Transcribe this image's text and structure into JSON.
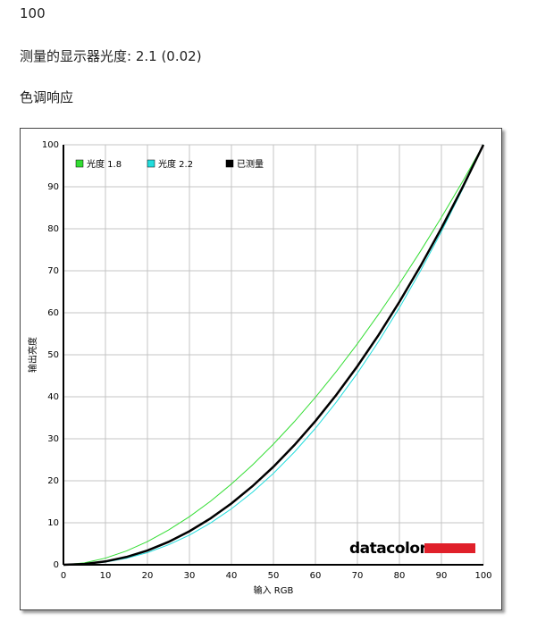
{
  "header": {
    "value": "100",
    "gamma": "测量的显示器光度: 2.1 (0.02)",
    "section": "色调响应"
  },
  "chart_data": {
    "type": "line",
    "logo": "datacolor",
    "xlabel": "输入 RGB",
    "ylabel": "输出亮度",
    "x": [
      0,
      5,
      10,
      15,
      20,
      25,
      30,
      35,
      40,
      45,
      50,
      55,
      60,
      65,
      70,
      75,
      80,
      85,
      90,
      95,
      100
    ],
    "series": [
      {
        "name": "光度 1.8",
        "color": "#33dd33",
        "width": 1,
        "values": [
          0,
          0.46,
          1.58,
          3.29,
          5.52,
          8.25,
          11.45,
          15.11,
          19.22,
          23.76,
          28.72,
          34.09,
          39.87,
          46.05,
          52.62,
          59.58,
          66.92,
          74.64,
          82.72,
          91.18,
          100
        ]
      },
      {
        "name": "光度 2.2",
        "color": "#22dddd",
        "width": 1,
        "values": [
          0,
          0.14,
          0.63,
          1.54,
          2.9,
          4.74,
          7.07,
          9.93,
          13.32,
          17.26,
          21.76,
          26.84,
          32.5,
          38.76,
          45.62,
          53.11,
          61.21,
          69.94,
          79.31,
          89.33,
          100
        ]
      },
      {
        "name": "已测量",
        "color": "#000000",
        "width": 2.5,
        "values": [
          0,
          0.19,
          0.79,
          1.86,
          3.4,
          5.44,
          7.98,
          11.03,
          14.6,
          18.7,
          23.33,
          28.5,
          34.21,
          40.47,
          47.29,
          54.65,
          62.6,
          71.08,
          80.15,
          89.79,
          100
        ]
      }
    ],
    "xlim": [
      0,
      100
    ],
    "ylim": [
      0,
      100
    ],
    "xticks": [
      0,
      10,
      20,
      30,
      40,
      50,
      60,
      70,
      80,
      90,
      100
    ],
    "yticks": [
      0,
      10,
      20,
      30,
      40,
      50,
      60,
      70,
      80,
      90,
      100
    ],
    "grid": true,
    "legend": "top-left"
  }
}
